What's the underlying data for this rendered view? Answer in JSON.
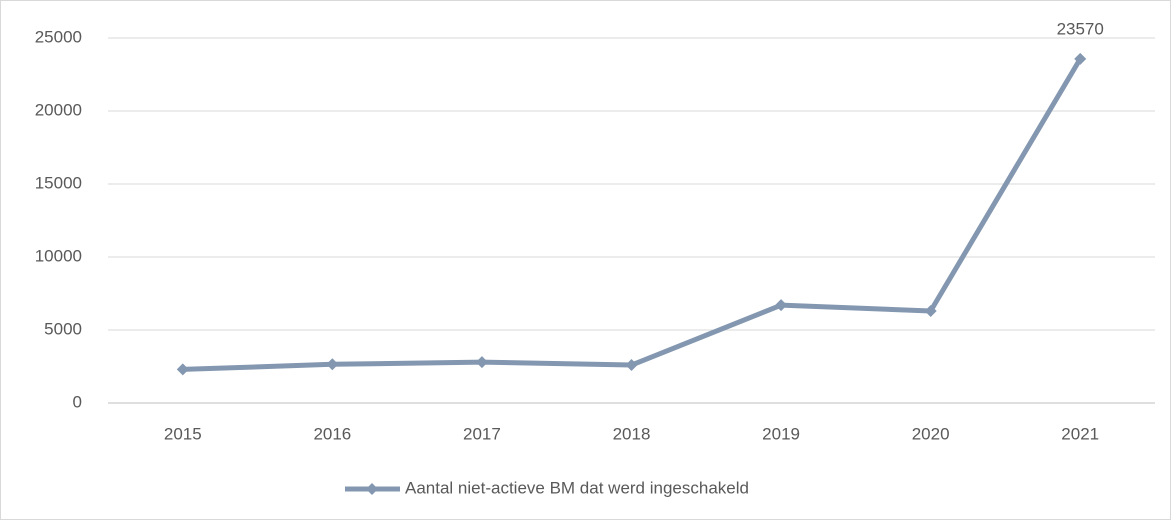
{
  "chart_data": {
    "type": "line",
    "categories": [
      "2015",
      "2016",
      "2017",
      "2018",
      "2019",
      "2020",
      "2021"
    ],
    "series": [
      {
        "name": "Aantal niet-actieve BM dat werd ingeschakeld",
        "color": "#8497b0",
        "values": [
          2300,
          2650,
          2800,
          2600,
          6700,
          6300,
          23570
        ],
        "value_labels": [
          null,
          null,
          null,
          null,
          null,
          null,
          "23570"
        ]
      }
    ],
    "ylim": [
      0,
      25000
    ],
    "yticks": [
      0,
      5000,
      10000,
      15000,
      20000,
      25000
    ],
    "grid": true,
    "legend": "bottom"
  }
}
